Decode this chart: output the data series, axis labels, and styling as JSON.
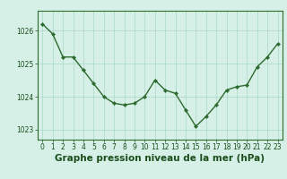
{
  "x": [
    0,
    1,
    2,
    3,
    4,
    5,
    6,
    7,
    8,
    9,
    10,
    11,
    12,
    13,
    14,
    15,
    16,
    17,
    18,
    19,
    20,
    21,
    22,
    23
  ],
  "y": [
    1026.2,
    1025.9,
    1025.2,
    1025.2,
    1024.8,
    1024.4,
    1024.0,
    1023.8,
    1023.75,
    1023.8,
    1024.0,
    1024.5,
    1024.2,
    1024.1,
    1023.6,
    1023.1,
    1023.4,
    1023.75,
    1024.2,
    1024.3,
    1024.35,
    1024.9,
    1025.2,
    1025.6
  ],
  "line_color": "#2d6a2d",
  "marker": "D",
  "marker_size": 2.2,
  "bg_color": "#d6f0e8",
  "grid_color": "#a8d8c8",
  "xlabel": "Graphe pression niveau de la mer (hPa)",
  "xlabel_color": "#1a4d1a",
  "tick_color": "#1a4d1a",
  "spine_color": "#2d6a2d",
  "ylim": [
    1022.7,
    1026.6
  ],
  "yticks": [
    1023,
    1024,
    1025,
    1026
  ],
  "xticks": [
    0,
    1,
    2,
    3,
    4,
    5,
    6,
    7,
    8,
    9,
    10,
    11,
    12,
    13,
    14,
    15,
    16,
    17,
    18,
    19,
    20,
    21,
    22,
    23
  ],
  "line_width": 1.0,
  "xlabel_fontsize": 7.5,
  "tick_fontsize": 5.5
}
